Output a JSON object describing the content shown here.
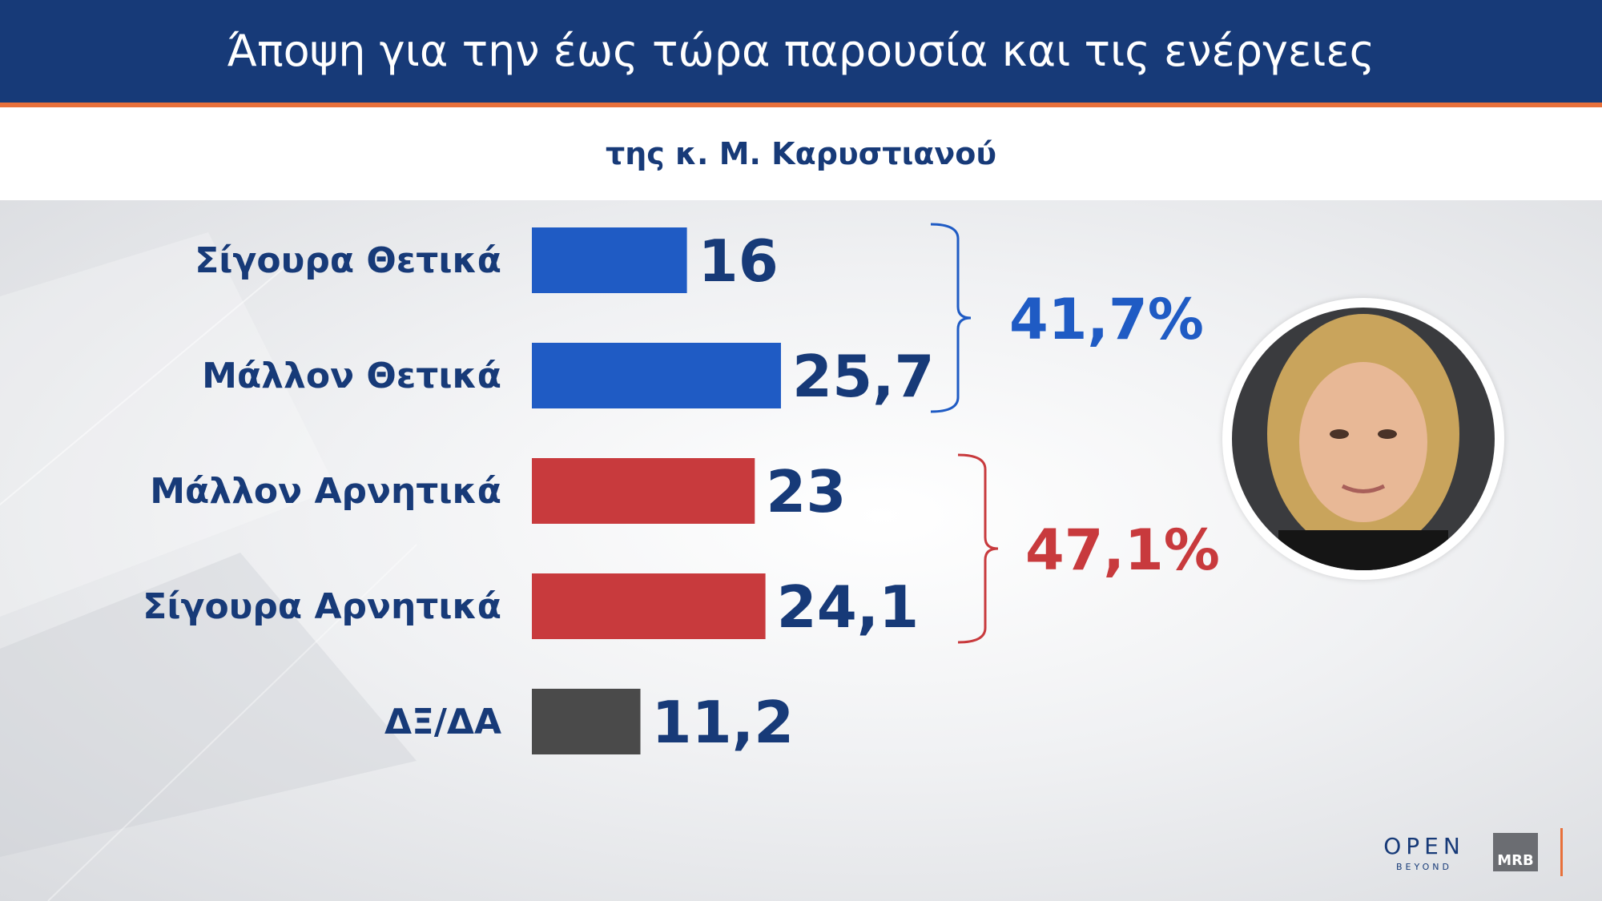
{
  "header": {
    "title": "Άποψη για την έως τώρα παρουσία και τις ενέργειες",
    "subtitle": "της κ. Μ. Καρυστιανού"
  },
  "chart_data": {
    "type": "bar",
    "orientation": "horizontal",
    "categories": [
      "Σίγουρα Θετικά",
      "Μάλλον Θετικά",
      "Μάλλον Αρνητικά",
      "Σίγουρα Αρνητικά",
      "ΔΞ/ΔΑ"
    ],
    "values": [
      16,
      25.7,
      23,
      24.1,
      11.2
    ],
    "value_labels": [
      "16",
      "25,7",
      "23",
      "24,1",
      "11,2"
    ],
    "bar_colors": [
      "#1f5bc4",
      "#1f5bc4",
      "#c83a3d",
      "#c83a3d",
      "#4a4a4a"
    ],
    "groups": [
      {
        "label": "41,7%",
        "members": [
          0,
          1
        ],
        "color": "#1f5bc4"
      },
      {
        "label": "47,1%",
        "members": [
          2,
          3
        ],
        "color": "#c83a3d"
      }
    ],
    "xlim": [
      0,
      30
    ],
    "grid": false,
    "legend": "none"
  },
  "branding": {
    "open_logo": "OPEN",
    "open_sub": "BEYOND",
    "mrb_logo": "MRB"
  },
  "colors": {
    "header_bg": "#173a78",
    "accent": "#e8703a",
    "text_dark": "#173a78"
  },
  "icons": {
    "portrait": "person-photo"
  }
}
